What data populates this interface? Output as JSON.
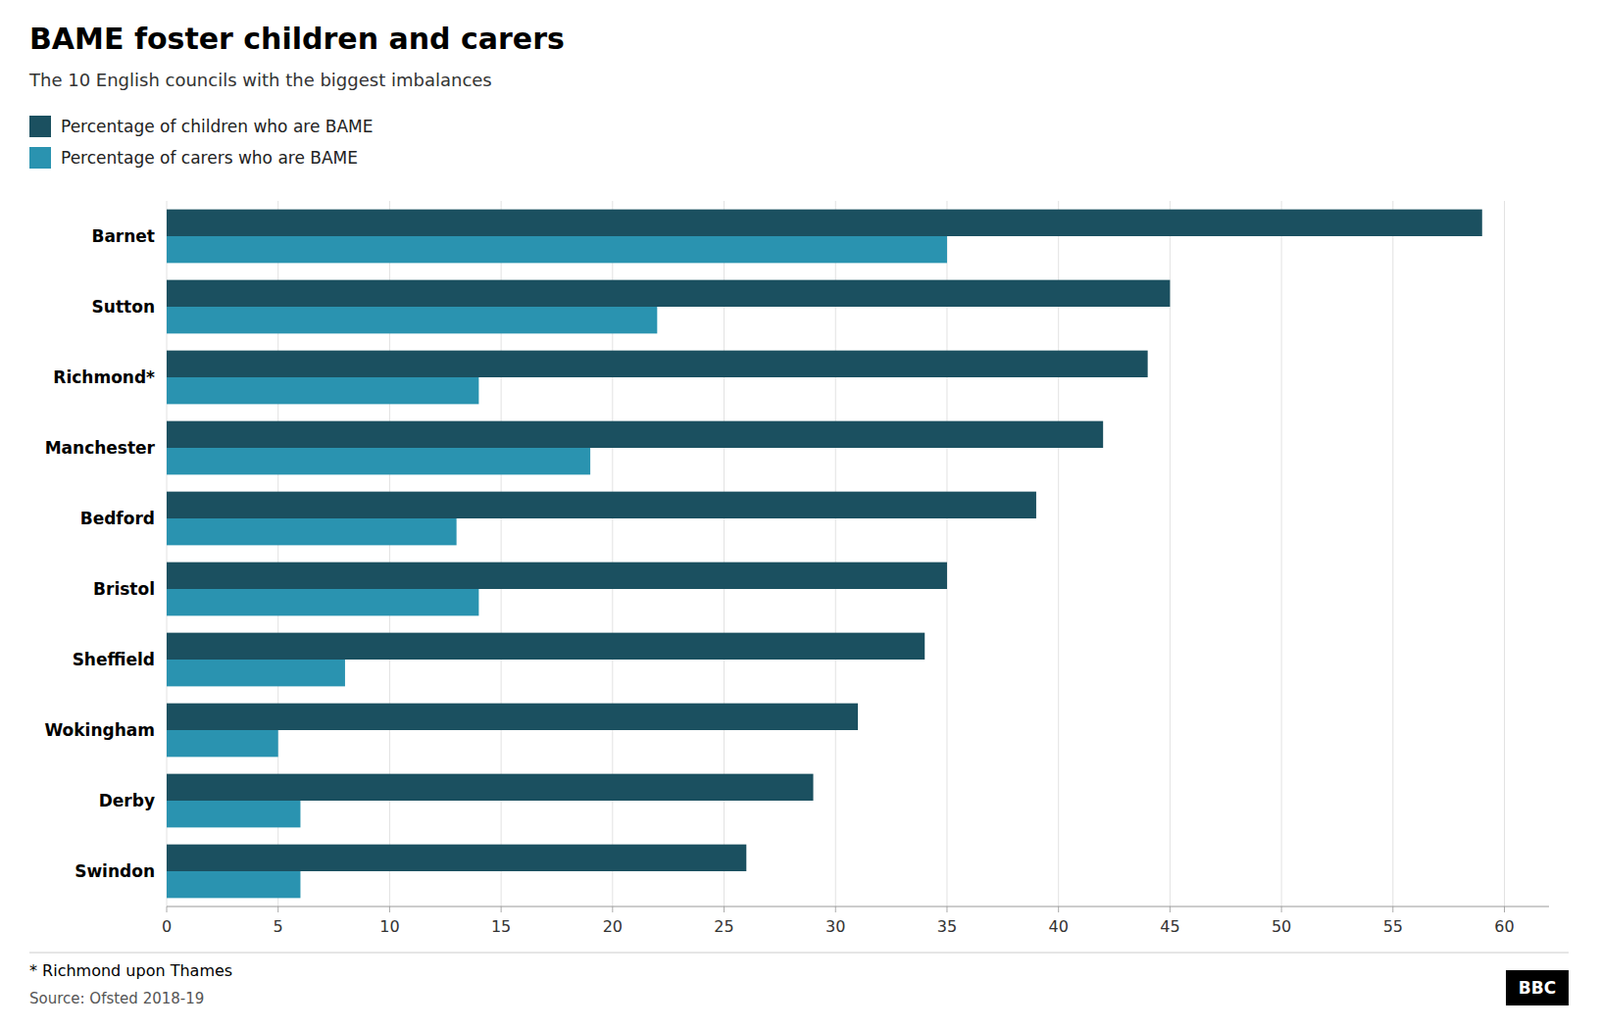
{
  "chart_data": {
    "type": "bar",
    "orientation": "horizontal",
    "title": "BAME foster children and carers",
    "subtitle": "The 10 English councils with the biggest imbalances",
    "categories": [
      "Barnet",
      "Sutton",
      "Richmond*",
      "Manchester",
      "Bedford",
      "Bristol",
      "Sheffield",
      "Wokingham",
      "Derby",
      "Swindon"
    ],
    "series": [
      {
        "name": "Percentage of children who are BAME",
        "color": "#1b5060",
        "values": [
          59,
          45,
          44,
          42,
          39,
          35,
          34,
          31,
          29,
          26
        ]
      },
      {
        "name": "Percentage of carers who are BAME",
        "color": "#2a93b0",
        "values": [
          35,
          22,
          14,
          19,
          13,
          14,
          8,
          5,
          6,
          6
        ]
      }
    ],
    "xlim": [
      0,
      62
    ],
    "xticks": [
      0,
      5,
      10,
      15,
      20,
      25,
      30,
      35,
      40,
      45,
      50,
      55,
      60
    ],
    "grid": true,
    "legend": "upper left",
    "annotations": [
      "* Richmond upon Thames",
      "Source: Ofsted 2018-19",
      "BBC"
    ]
  }
}
